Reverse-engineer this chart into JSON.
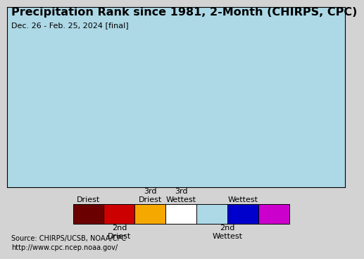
{
  "title": "Precipitation Rank since 1981, 2-Month (CHIRPS, CPC)",
  "subtitle": "Dec. 26 - Feb. 25, 2024 [final]",
  "source_line1": "Source: CHIRPS/UCSB, NOAA/CPC",
  "source_line2": "http://www.cpc.ncep.noaa.gov/",
  "ocean_color": "#add8e6",
  "land_color": "#ffffff",
  "border_color": "#000000",
  "background_color": "#d3d3d3",
  "legend_colors": [
    "#6b0000",
    "#cc0000",
    "#f5a800",
    "#ffffff",
    "#add8e6",
    "#0000cc",
    "#cc00cc"
  ],
  "title_fontsize": 11.5,
  "subtitle_fontsize": 8,
  "source_fontsize": 7,
  "legend_fontsize": 8
}
